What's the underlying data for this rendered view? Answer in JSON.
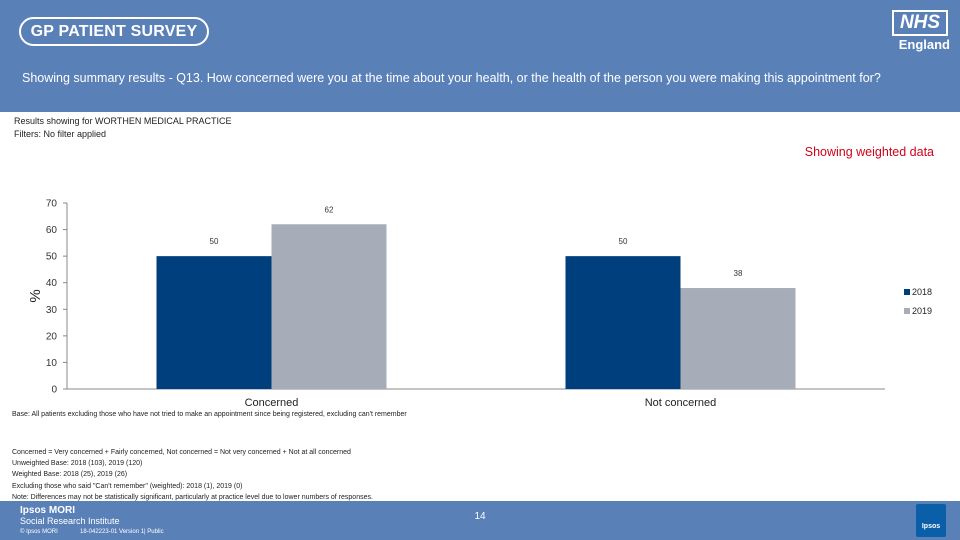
{
  "header": {
    "survey_logo_text": "GP PATIENT SURVEY",
    "nhs_logo": "NHS",
    "nhs_region": "England",
    "question": "Showing summary results - Q13.  How concerned were you at the time about your health, or the health of the person you were making this appointment for?"
  },
  "meta": {
    "results_for": "Results showing for WORTHEN MEDICAL PRACTICE",
    "filters": "Filters: No filter applied",
    "weighted_label": "Showing weighted data"
  },
  "colors": {
    "header_bg": "#5a80b8",
    "series_2018": "#003f7d",
    "series_2019": "#a6adb8",
    "weighted_text": "#d0021b"
  },
  "chart_data": {
    "type": "bar",
    "title": "",
    "xlabel": "",
    "ylabel": "%",
    "ylim": [
      0,
      70
    ],
    "yticks": [
      "0",
      "10",
      "20",
      "30",
      "40",
      "50",
      "60",
      "70"
    ],
    "categories": [
      "Concerned",
      "Not concerned"
    ],
    "series": [
      {
        "name": "2018",
        "values": [
          50,
          50
        ],
        "labels": [
          "50",
          "50"
        ]
      },
      {
        "name": "2019",
        "values": [
          62,
          38
        ],
        "labels": [
          "62",
          "38"
        ]
      }
    ],
    "legend": "right",
    "grid": false
  },
  "notes": {
    "base": "Base: All patients excluding those who have not tried to make an appointment since being registered, excluding can't remember",
    "lines": [
      "Concerned = Very concerned + Fairly concerned, Not concerned = Not very concerned + Not at all concerned",
      "Unweighted Base: 2018 (103), 2019 (120)",
      "Weighted Base: 2018 (25), 2019 (26)",
      "Excluding those who said \"Can't remember\" (weighted): 2018 (1), 2019 (0)",
      "Note: Differences may not be statistically significant, particularly at practice level due to lower numbers of responses."
    ]
  },
  "footer": {
    "company": "Ipsos MORI",
    "division": "Social Research Institute",
    "copyright": "© Ipsos MORI",
    "version": "18-042223-01 Version 1| Public",
    "page_number": "14",
    "ipsos_logo": "Ipsos"
  }
}
